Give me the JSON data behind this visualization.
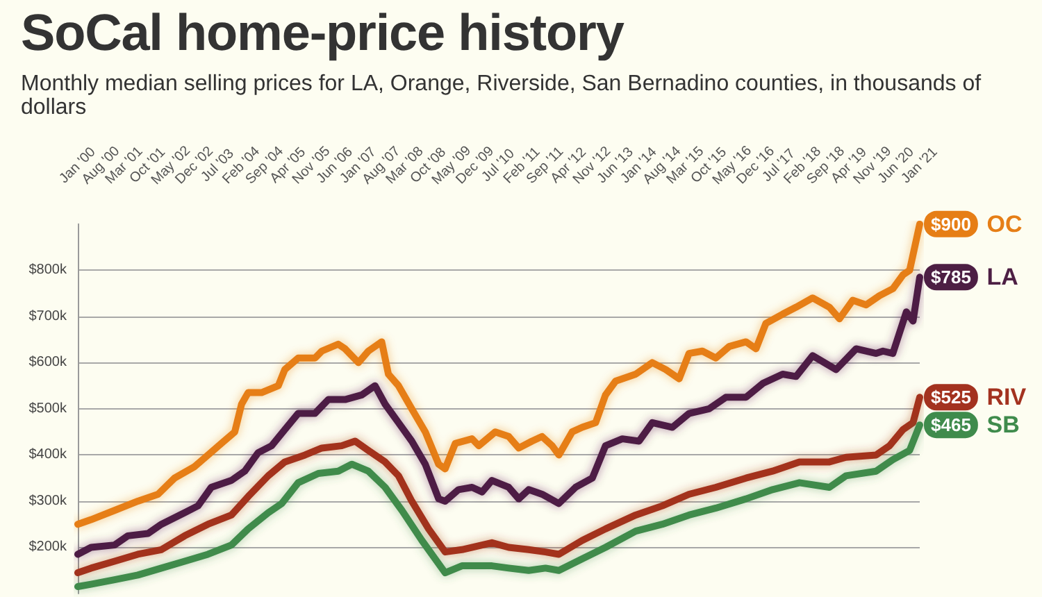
{
  "chart_data": {
    "type": "line",
    "title": "SoCal home-price history",
    "subtitle": "Monthly median selling prices for LA, Orange, Riverside, San Bernadino counties, in thousands of dollars",
    "xlim": [
      "2000-01",
      "2021-01"
    ],
    "xticks": [
      {
        "value": "2000-01",
        "label": "Jan '00"
      },
      {
        "value": "2000-08",
        "label": "Aug '00"
      },
      {
        "value": "2001-03",
        "label": "Mar '01"
      },
      {
        "value": "2001-10",
        "label": "Oct '01"
      },
      {
        "value": "2002-05",
        "label": "May '02"
      },
      {
        "value": "2002-12",
        "label": "Dec '02"
      },
      {
        "value": "2003-07",
        "label": "Jul '03"
      },
      {
        "value": "2004-02",
        "label": "Feb '04"
      },
      {
        "value": "2004-09",
        "label": "Sep '04"
      },
      {
        "value": "2005-04",
        "label": "Apr '05"
      },
      {
        "value": "2005-11",
        "label": "Nov '05"
      },
      {
        "value": "2006-06",
        "label": "Jun '06"
      },
      {
        "value": "2007-01",
        "label": "Jan '07"
      },
      {
        "value": "2007-08",
        "label": "Aug '07"
      },
      {
        "value": "2008-03",
        "label": "Mar '08"
      },
      {
        "value": "2008-10",
        "label": "Oct '08"
      },
      {
        "value": "2009-05",
        "label": "May '09"
      },
      {
        "value": "2009-12",
        "label": "Dec '09"
      },
      {
        "value": "2010-07",
        "label": "Jul '10"
      },
      {
        "value": "2011-02",
        "label": "Feb '11"
      },
      {
        "value": "2011-09",
        "label": "Sep '11"
      },
      {
        "value": "2012-04",
        "label": "Apr '12"
      },
      {
        "value": "2012-11",
        "label": "Nov '12"
      },
      {
        "value": "2013-06",
        "label": "Jun '13"
      },
      {
        "value": "2014-01",
        "label": "Jan '14"
      },
      {
        "value": "2014-08",
        "label": "Aug '14"
      },
      {
        "value": "2015-03",
        "label": "Mar '15"
      },
      {
        "value": "2015-10",
        "label": "Oct '15"
      },
      {
        "value": "2016-05",
        "label": "May '16"
      },
      {
        "value": "2016-12",
        "label": "Dec '16"
      },
      {
        "value": "2017-07",
        "label": "Jul '17"
      },
      {
        "value": "2018-02",
        "label": "Feb '18"
      },
      {
        "value": "2018-09",
        "label": "Sep '18"
      },
      {
        "value": "2019-04",
        "label": "Apr '19"
      },
      {
        "value": "2019-11",
        "label": "Nov '19"
      },
      {
        "value": "2020-06",
        "label": "Jun '20"
      },
      {
        "value": "2021-01",
        "label": "Jan '21"
      }
    ],
    "ylim": [
      100,
      900
    ],
    "yticks": [
      {
        "value": 200,
        "label": "$200k"
      },
      {
        "value": 300,
        "label": "$300k"
      },
      {
        "value": 400,
        "label": "$400k"
      },
      {
        "value": 500,
        "label": "$500k"
      },
      {
        "value": 600,
        "label": "$600k"
      },
      {
        "value": 700,
        "label": "$700k"
      },
      {
        "value": 800,
        "label": "$800k"
      }
    ],
    "grid": "y",
    "legend": "right",
    "series": [
      {
        "name": "OC",
        "color": "#e67e16",
        "x": [
          "2000-01",
          "2000-05",
          "2000-12",
          "2001-07",
          "2002-01",
          "2002-06",
          "2002-12",
          "2003-04",
          "2003-08",
          "2003-12",
          "2004-02",
          "2004-04",
          "2004-08",
          "2005-01",
          "2005-03",
          "2005-07",
          "2005-12",
          "2006-02",
          "2006-07",
          "2006-09",
          "2007-01",
          "2007-04",
          "2007-08",
          "2007-10",
          "2008-01",
          "2008-05",
          "2008-09",
          "2009-01",
          "2009-03",
          "2009-06",
          "2009-11",
          "2010-01",
          "2010-06",
          "2010-10",
          "2011-01",
          "2011-05",
          "2011-08",
          "2011-11",
          "2012-01",
          "2012-05",
          "2012-08",
          "2012-12",
          "2013-03",
          "2013-06",
          "2013-12",
          "2014-05",
          "2014-09",
          "2015-01",
          "2015-04",
          "2015-08",
          "2015-12",
          "2016-04",
          "2016-09",
          "2016-12",
          "2017-03",
          "2017-08",
          "2017-12",
          "2018-05",
          "2018-10",
          "2019-01",
          "2019-05",
          "2019-09",
          "2020-01",
          "2020-05",
          "2020-08",
          "2020-10",
          "2021-01"
        ],
        "values": [
          250,
          260,
          280,
          300,
          315,
          350,
          375,
          400,
          425,
          450,
          510,
          535,
          535,
          550,
          585,
          610,
          610,
          625,
          640,
          630,
          600,
          625,
          645,
          575,
          550,
          500,
          450,
          380,
          370,
          425,
          435,
          420,
          450,
          440,
          415,
          430,
          440,
          420,
          400,
          450,
          460,
          470,
          530,
          560,
          575,
          600,
          585,
          565,
          620,
          625,
          610,
          635,
          645,
          630,
          685,
          705,
          720,
          740,
          720,
          695,
          735,
          725,
          745,
          760,
          790,
          800,
          900
        ],
        "value_labels": [
          null,
          null,
          null,
          null,
          null,
          null,
          null,
          null,
          null,
          null,
          null,
          null,
          null,
          null,
          null,
          null,
          null,
          null,
          null,
          null,
          null,
          null,
          null,
          null,
          null,
          null,
          null,
          null,
          null,
          null,
          null,
          null,
          null,
          null,
          null,
          null,
          null,
          null,
          null,
          null,
          null,
          null,
          null,
          null,
          null,
          null,
          null,
          null,
          null,
          null,
          null,
          null,
          null,
          null,
          null,
          null,
          null,
          null,
          null,
          null,
          null,
          null,
          null,
          null,
          null,
          null,
          "$900"
        ]
      },
      {
        "name": "LA",
        "color": "#4d1f44",
        "x": [
          "2000-01",
          "2000-05",
          "2000-12",
          "2001-04",
          "2001-10",
          "2002-02",
          "2002-09",
          "2003-01",
          "2003-05",
          "2003-11",
          "2004-03",
          "2004-07",
          "2004-11",
          "2005-03",
          "2005-07",
          "2005-12",
          "2006-04",
          "2006-09",
          "2007-02",
          "2007-06",
          "2007-09",
          "2008-01",
          "2008-05",
          "2008-09",
          "2009-01",
          "2009-03",
          "2009-07",
          "2009-11",
          "2010-02",
          "2010-05",
          "2010-10",
          "2011-01",
          "2011-04",
          "2011-08",
          "2012-01",
          "2012-06",
          "2012-11",
          "2013-03",
          "2013-08",
          "2014-01",
          "2014-05",
          "2014-11",
          "2015-04",
          "2015-10",
          "2016-03",
          "2016-09",
          "2017-02",
          "2017-08",
          "2017-12",
          "2018-05",
          "2018-12",
          "2019-06",
          "2019-12",
          "2020-02",
          "2020-05",
          "2020-09",
          "2020-11",
          "2021-01"
        ],
        "values": [
          185,
          200,
          205,
          225,
          230,
          250,
          275,
          290,
          330,
          345,
          365,
          405,
          420,
          455,
          490,
          490,
          520,
          520,
          530,
          550,
          510,
          470,
          430,
          380,
          305,
          300,
          325,
          330,
          320,
          345,
          330,
          305,
          325,
          315,
          295,
          330,
          350,
          420,
          435,
          430,
          470,
          460,
          490,
          500,
          525,
          525,
          555,
          575,
          570,
          615,
          585,
          630,
          620,
          625,
          620,
          710,
          690,
          785
        ],
        "value_labels": [
          null,
          null,
          null,
          null,
          null,
          null,
          null,
          null,
          null,
          null,
          null,
          null,
          null,
          null,
          null,
          null,
          null,
          null,
          null,
          null,
          null,
          null,
          null,
          null,
          null,
          null,
          null,
          null,
          null,
          null,
          null,
          null,
          null,
          null,
          null,
          null,
          null,
          null,
          null,
          null,
          null,
          null,
          null,
          null,
          null,
          null,
          null,
          null,
          null,
          null,
          null,
          null,
          null,
          null,
          null,
          null,
          null,
          "$785"
        ]
      },
      {
        "name": "RIV",
        "color": "#a3321f",
        "x": [
          "2000-01",
          "2000-05",
          "2000-12",
          "2001-07",
          "2002-02",
          "2002-09",
          "2003-04",
          "2003-11",
          "2004-04",
          "2004-10",
          "2005-03",
          "2005-09",
          "2006-02",
          "2006-08",
          "2006-12",
          "2007-04",
          "2007-09",
          "2008-01",
          "2008-05",
          "2008-10",
          "2009-03",
          "2009-08",
          "2010-05",
          "2010-10",
          "2011-04",
          "2011-09",
          "2012-01",
          "2012-08",
          "2013-03",
          "2013-12",
          "2014-08",
          "2015-04",
          "2015-12",
          "2016-09",
          "2017-05",
          "2018-01",
          "2018-10",
          "2019-03",
          "2019-12",
          "2020-04",
          "2020-08",
          "2020-11",
          "2021-01"
        ],
        "values": [
          145,
          155,
          170,
          185,
          195,
          225,
          250,
          270,
          310,
          355,
          385,
          400,
          415,
          420,
          430,
          410,
          385,
          355,
          300,
          240,
          190,
          195,
          210,
          200,
          195,
          190,
          185,
          215,
          240,
          270,
          290,
          315,
          330,
          350,
          365,
          385,
          385,
          395,
          400,
          420,
          455,
          470,
          525
        ],
        "value_labels": [
          null,
          null,
          null,
          null,
          null,
          null,
          null,
          null,
          null,
          null,
          null,
          null,
          null,
          null,
          null,
          null,
          null,
          null,
          null,
          null,
          null,
          null,
          null,
          null,
          null,
          null,
          null,
          null,
          null,
          null,
          null,
          null,
          null,
          null,
          null,
          null,
          null,
          null,
          null,
          null,
          null,
          null,
          "$525"
        ]
      },
      {
        "name": "SB",
        "color": "#3f8b4c",
        "x": [
          "2000-01",
          "2000-05",
          "2000-12",
          "2001-07",
          "2002-02",
          "2002-09",
          "2003-04",
          "2003-11",
          "2004-04",
          "2004-10",
          "2005-02",
          "2005-07",
          "2006-01",
          "2006-07",
          "2006-11",
          "2007-04",
          "2007-09",
          "2008-02",
          "2008-08",
          "2009-03",
          "2009-08",
          "2010-05",
          "2010-10",
          "2011-04",
          "2011-09",
          "2012-01",
          "2012-08",
          "2013-03",
          "2013-12",
          "2014-08",
          "2015-04",
          "2015-12",
          "2016-09",
          "2017-05",
          "2018-01",
          "2018-10",
          "2019-03",
          "2019-12",
          "2020-05",
          "2020-10",
          "2021-01"
        ],
        "values": [
          115,
          120,
          130,
          140,
          155,
          170,
          185,
          205,
          240,
          275,
          295,
          340,
          360,
          365,
          380,
          365,
          330,
          280,
          215,
          145,
          160,
          160,
          155,
          150,
          155,
          150,
          175,
          200,
          235,
          250,
          270,
          285,
          305,
          325,
          340,
          330,
          355,
          365,
          390,
          410,
          465
        ],
        "value_labels": [
          null,
          null,
          null,
          null,
          null,
          null,
          null,
          null,
          null,
          null,
          null,
          null,
          null,
          null,
          null,
          null,
          null,
          null,
          null,
          null,
          null,
          null,
          null,
          null,
          null,
          null,
          null,
          null,
          null,
          null,
          null,
          null,
          null,
          null,
          null,
          null,
          null,
          null,
          null,
          null,
          "$465"
        ]
      }
    ]
  }
}
